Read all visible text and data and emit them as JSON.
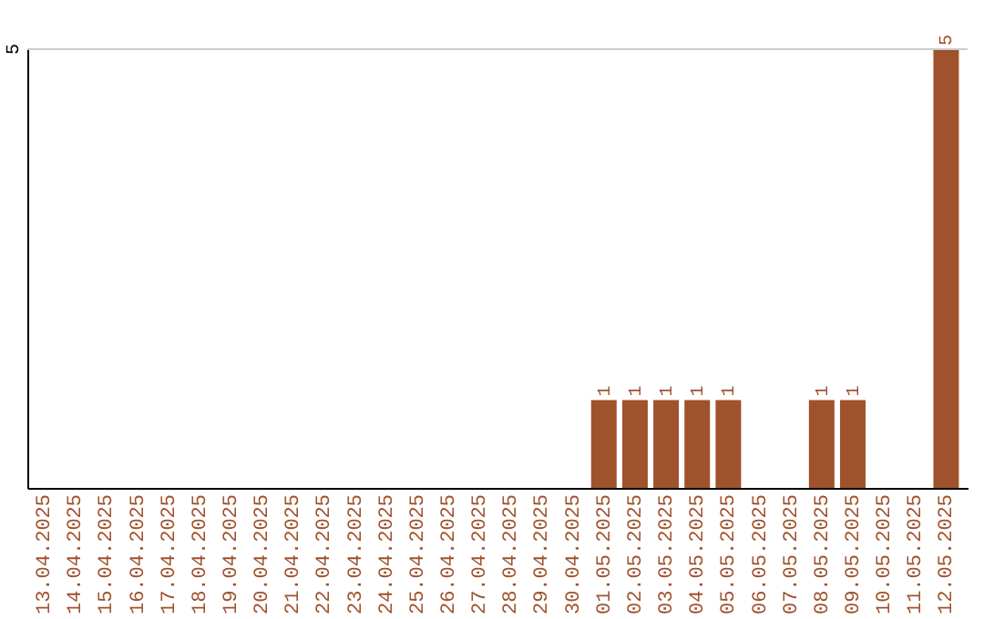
{
  "chart_data": {
    "type": "bar",
    "categories": [
      "13.04.2025",
      "14.04.2025",
      "15.04.2025",
      "16.04.2025",
      "17.04.2025",
      "18.04.2025",
      "19.04.2025",
      "20.04.2025",
      "21.04.2025",
      "22.04.2025",
      "23.04.2025",
      "24.04.2025",
      "25.04.2025",
      "26.04.2025",
      "27.04.2025",
      "28.04.2025",
      "29.04.2025",
      "30.04.2025",
      "01.05.2025",
      "02.05.2025",
      "03.05.2025",
      "04.05.2025",
      "05.05.2025",
      "06.05.2025",
      "07.05.2025",
      "08.05.2025",
      "09.05.2025",
      "10.05.2025",
      "11.05.2025",
      "12.05.2025"
    ],
    "values": [
      null,
      null,
      null,
      null,
      null,
      null,
      null,
      null,
      null,
      null,
      null,
      null,
      null,
      null,
      null,
      null,
      null,
      null,
      1,
      1,
      1,
      1,
      1,
      null,
      null,
      1,
      1,
      null,
      null,
      5
    ],
    "value_labels": [
      null,
      null,
      null,
      null,
      null,
      null,
      null,
      null,
      null,
      null,
      null,
      null,
      null,
      null,
      null,
      null,
      null,
      null,
      "1",
      "1",
      "1",
      "1",
      "1",
      null,
      null,
      "1",
      "1",
      null,
      null,
      "5"
    ],
    "color": "#a0522d",
    "ylim": [
      0,
      5
    ],
    "ref_lines": [
      {
        "axis": "y",
        "value": 5,
        "label": "5",
        "color": "#cccccc"
      }
    ]
  }
}
